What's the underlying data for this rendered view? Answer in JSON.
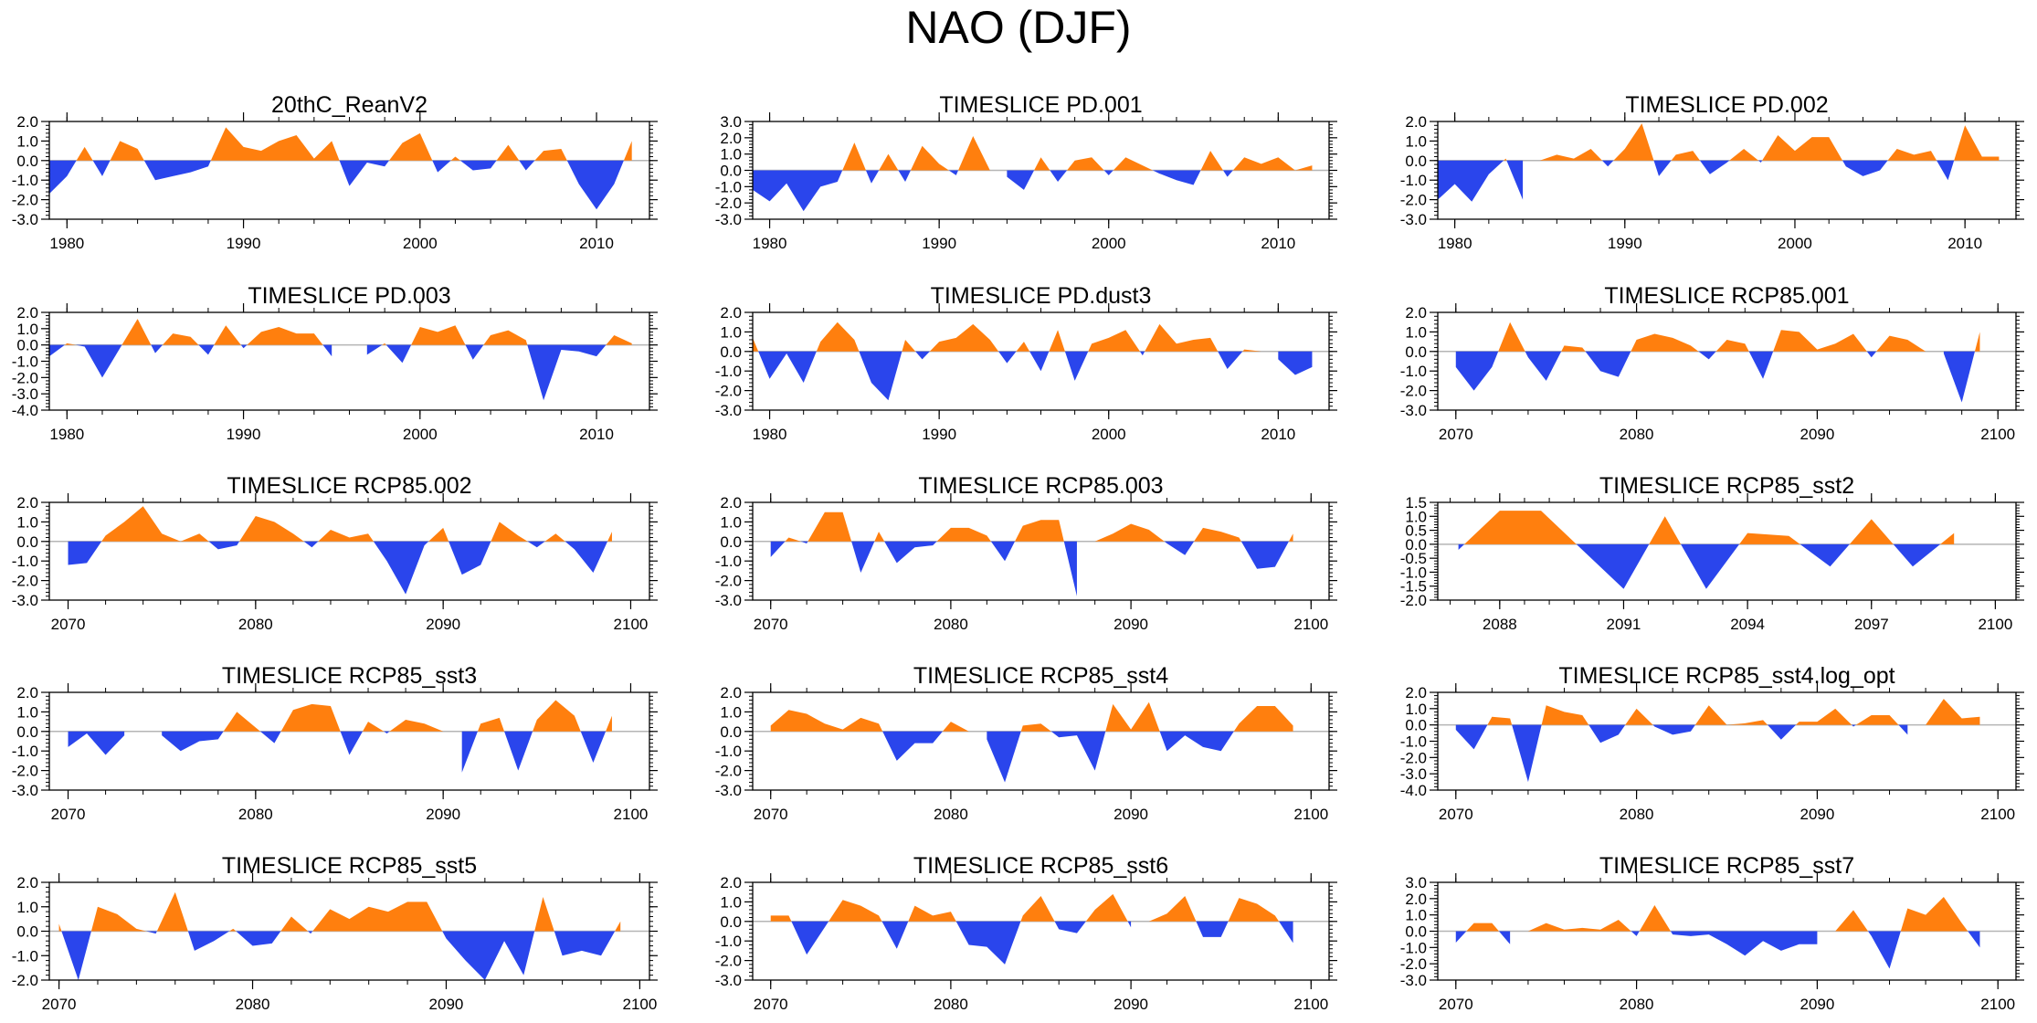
{
  "page": {
    "title": "NAO (DJF)"
  },
  "colors": {
    "positive": "#ff7f0e",
    "negative": "#2a45ec",
    "axis": "#000000",
    "zero_line": "#b5b5b5"
  },
  "chart_data": [
    {
      "type": "area",
      "title": "20thC_ReanV2",
      "xlim": [
        1979,
        2013
      ],
      "ylim": [
        -3,
        2
      ],
      "yticks": [
        -3,
        -2,
        -1,
        0,
        1,
        2
      ],
      "xticks": [
        1980,
        1990,
        2000,
        2010
      ],
      "x": [
        1979,
        1980,
        1981,
        1982,
        1983,
        1984,
        1985,
        1986,
        1987,
        1988,
        1989,
        1990,
        1991,
        1992,
        1993,
        1994,
        1995,
        1996,
        1997,
        1998,
        1999,
        2000,
        2001,
        2002,
        2003,
        2004,
        2005,
        2006,
        2007,
        2008,
        2009,
        2010,
        2011,
        2012
      ],
      "values": [
        -1.7,
        -0.8,
        0.7,
        -0.8,
        1.0,
        0.6,
        -1.0,
        -0.8,
        -0.6,
        -0.3,
        1.7,
        0.7,
        0.5,
        1.0,
        1.3,
        0.1,
        1.0,
        -1.3,
        -0.1,
        -0.3,
        0.9,
        1.4,
        -0.6,
        0.2,
        -0.5,
        -0.4,
        0.8,
        -0.5,
        0.5,
        0.6,
        -1.2,
        -2.5,
        -1.2,
        1.0
      ]
    },
    {
      "type": "area",
      "title": "TIMESLICE PD.001",
      "xlim": [
        1979,
        2013
      ],
      "ylim": [
        -3,
        3
      ],
      "yticks": [
        -3,
        -2,
        -1,
        0,
        1,
        2,
        3
      ],
      "xticks": [
        1980,
        1990,
        2000,
        2010
      ],
      "x": [
        1979,
        1980,
        1981,
        1982,
        1983,
        1984,
        1985,
        1986,
        1987,
        1988,
        1989,
        1990,
        1991,
        1992,
        1993,
        1994,
        1995,
        1996,
        1997,
        1998,
        1999,
        2000,
        2001,
        2002,
        2003,
        2004,
        2005,
        2006,
        2007,
        2008,
        2009,
        2010,
        2011,
        2012
      ],
      "values": [
        -1.2,
        -1.9,
        -0.8,
        -2.5,
        -1.0,
        -0.7,
        1.7,
        -0.8,
        1.0,
        -0.7,
        1.5,
        0.4,
        -0.3,
        2.1,
        0.0,
        -0.4,
        -1.2,
        0.8,
        -0.7,
        0.6,
        0.8,
        -0.3,
        0.8,
        0.3,
        -0.2,
        -0.6,
        -0.9,
        1.2,
        -0.4,
        0.8,
        0.4,
        0.8,
        0.0,
        0.3
      ]
    },
    {
      "type": "area",
      "title": "TIMESLICE PD.002",
      "xlim": [
        1979,
        2013
      ],
      "ylim": [
        -3,
        2
      ],
      "yticks": [
        -3,
        -2,
        -1,
        0,
        1,
        2
      ],
      "xticks": [
        1980,
        1990,
        2000,
        2010
      ],
      "x": [
        1979,
        1980,
        1981,
        1982,
        1983,
        1984,
        1985,
        1986,
        1987,
        1988,
        1989,
        1990,
        1991,
        1992,
        1993,
        1994,
        1995,
        1996,
        1997,
        1998,
        1999,
        2000,
        2001,
        2002,
        2003,
        2004,
        2005,
        2006,
        2007,
        2008,
        2009,
        2010,
        2011,
        2012
      ],
      "values": [
        -2.0,
        -1.2,
        -2.1,
        -0.7,
        0.1,
        -2.0,
        0.0,
        0.3,
        0.1,
        0.6,
        -0.3,
        0.6,
        1.9,
        -0.8,
        0.3,
        0.5,
        -0.7,
        -0.1,
        0.6,
        -0.1,
        1.3,
        0.5,
        1.2,
        1.2,
        -0.3,
        -0.8,
        -0.5,
        0.6,
        0.3,
        0.5,
        -1.0,
        1.8,
        0.2,
        0.2
      ]
    },
    {
      "type": "area",
      "title": "TIMESLICE PD.003",
      "xlim": [
        1979,
        2013
      ],
      "ylim": [
        -4,
        2
      ],
      "yticks": [
        -4,
        -3,
        -2,
        -1,
        0,
        1,
        2
      ],
      "xticks": [
        1980,
        1990,
        2000,
        2010
      ],
      "x": [
        1979,
        1980,
        1981,
        1982,
        1983,
        1984,
        1985,
        1986,
        1987,
        1988,
        1989,
        1990,
        1991,
        1992,
        1993,
        1994,
        1995,
        1996,
        1997,
        1998,
        1999,
        2000,
        2001,
        2002,
        2003,
        2004,
        2005,
        2006,
        2007,
        2008,
        2009,
        2010,
        2011,
        2012
      ],
      "values": [
        -0.7,
        0.1,
        -0.1,
        -2.0,
        -0.2,
        1.6,
        -0.5,
        0.7,
        0.5,
        -0.6,
        1.2,
        -0.2,
        0.8,
        1.1,
        0.7,
        0.7,
        -0.7,
        0.0,
        -0.6,
        0.1,
        -1.1,
        1.1,
        0.8,
        1.2,
        -0.9,
        0.6,
        0.9,
        0.3,
        -3.4,
        -0.3,
        -0.4,
        -0.7,
        0.6,
        0.1
      ]
    },
    {
      "type": "area",
      "title": "TIMESLICE PD.dust3",
      "xlim": [
        1979,
        2013
      ],
      "ylim": [
        -3,
        2
      ],
      "yticks": [
        -3,
        -2,
        -1,
        0,
        1,
        2
      ],
      "xticks": [
        1980,
        1990,
        2000,
        2010
      ],
      "x": [
        1979,
        1980,
        1981,
        1982,
        1983,
        1984,
        1985,
        1986,
        1987,
        1988,
        1989,
        1990,
        1991,
        1992,
        1993,
        1994,
        1995,
        1996,
        1997,
        1998,
        1999,
        2000,
        2001,
        2002,
        2003,
        2004,
        2005,
        2006,
        2007,
        2008,
        2009,
        2010,
        2011,
        2012
      ],
      "values": [
        0.7,
        -1.4,
        -0.1,
        -1.6,
        0.5,
        1.5,
        0.6,
        -1.6,
        -2.5,
        0.6,
        -0.4,
        0.5,
        0.7,
        1.4,
        0.6,
        -0.6,
        0.5,
        -1.0,
        1.1,
        -1.5,
        0.4,
        0.7,
        1.1,
        -0.2,
        1.4,
        0.4,
        0.6,
        0.7,
        -0.9,
        0.1,
        0.0,
        -0.4,
        -1.2,
        -0.8
      ]
    },
    {
      "type": "area",
      "title": "TIMESLICE RCP85.001",
      "xlim": [
        2069,
        2101
      ],
      "ylim": [
        -3,
        2
      ],
      "yticks": [
        -3,
        -2,
        -1,
        0,
        1,
        2
      ],
      "xticks": [
        2070,
        2080,
        2090,
        2100
      ],
      "x": [
        2070,
        2071,
        2072,
        2073,
        2074,
        2075,
        2076,
        2077,
        2078,
        2079,
        2080,
        2081,
        2082,
        2083,
        2084,
        2085,
        2086,
        2087,
        2088,
        2089,
        2090,
        2091,
        2092,
        2093,
        2094,
        2095,
        2096,
        2097,
        2098,
        2099
      ],
      "values": [
        -0.8,
        -2.0,
        -0.8,
        1.5,
        -0.3,
        -1.5,
        0.3,
        0.2,
        -1.0,
        -1.3,
        0.6,
        0.9,
        0.7,
        0.3,
        -0.4,
        0.6,
        0.4,
        -1.4,
        1.1,
        1.0,
        0.1,
        0.4,
        0.9,
        -0.3,
        0.8,
        0.6,
        0.0,
        -0.1,
        -2.6,
        1.0
      ]
    },
    {
      "type": "area",
      "title": "TIMESLICE RCP85.002",
      "xlim": [
        2069,
        2101
      ],
      "ylim": [
        -3,
        2
      ],
      "yticks": [
        -3,
        -2,
        -1,
        0,
        1,
        2
      ],
      "xticks": [
        2070,
        2080,
        2090,
        2100
      ],
      "x": [
        2070,
        2071,
        2072,
        2073,
        2074,
        2075,
        2076,
        2077,
        2078,
        2079,
        2080,
        2081,
        2082,
        2083,
        2084,
        2085,
        2086,
        2087,
        2088,
        2089,
        2090,
        2091,
        2092,
        2093,
        2094,
        2095,
        2096,
        2097,
        2098,
        2099
      ],
      "values": [
        -1.2,
        -1.1,
        0.3,
        1.0,
        1.8,
        0.4,
        0.0,
        0.4,
        -0.4,
        -0.2,
        1.3,
        1.0,
        0.4,
        -0.3,
        0.6,
        0.2,
        0.4,
        -1.0,
        -2.7,
        -0.2,
        0.7,
        -1.7,
        -1.2,
        1.0,
        0.3,
        -0.3,
        0.4,
        -0.4,
        -1.6,
        0.5
      ]
    },
    {
      "type": "area",
      "title": "TIMESLICE RCP85.003",
      "xlim": [
        2069,
        2101
      ],
      "ylim": [
        -3,
        2
      ],
      "yticks": [
        -3,
        -2,
        -1,
        0,
        1,
        2
      ],
      "xticks": [
        2070,
        2080,
        2090,
        2100
      ],
      "x": [
        2070,
        2071,
        2072,
        2073,
        2074,
        2075,
        2076,
        2077,
        2078,
        2079,
        2080,
        2081,
        2082,
        2083,
        2084,
        2085,
        2086,
        2087,
        2088,
        2089,
        2090,
        2091,
        2092,
        2093,
        2094,
        2095,
        2096,
        2097,
        2098,
        2099
      ],
      "values": [
        -0.8,
        0.2,
        -0.1,
        1.5,
        1.5,
        -1.6,
        0.5,
        -1.1,
        -0.3,
        -0.2,
        0.7,
        0.7,
        0.3,
        -1.0,
        0.8,
        1.1,
        1.1,
        -2.8,
        0.0,
        0.4,
        0.9,
        0.6,
        -0.1,
        -0.7,
        0.7,
        0.5,
        0.2,
        -1.4,
        -1.3,
        0.4
      ]
    },
    {
      "type": "area",
      "title": "TIMESLICE RCP85_sst2",
      "xlim": [
        2086.5,
        2100.5
      ],
      "ylim": [
        -2,
        1.5
      ],
      "yticks": [
        -2,
        -1.5,
        -1,
        -0.5,
        0,
        0.5,
        1,
        1.5
      ],
      "xticks": [
        2088,
        2091,
        2094,
        2097,
        2100
      ],
      "x": [
        2087,
        2088,
        2089,
        2090,
        2091,
        2092,
        2093,
        2094,
        2095,
        2096,
        2097,
        2098,
        2099
      ],
      "values": [
        -0.2,
        1.2,
        1.2,
        -0.2,
        -1.6,
        1.0,
        -1.6,
        0.4,
        0.3,
        -0.8,
        0.9,
        -0.8,
        0.4
      ]
    },
    {
      "type": "area",
      "title": "TIMESLICE RCP85_sst3",
      "xlim": [
        2069,
        2101
      ],
      "ylim": [
        -3,
        2
      ],
      "yticks": [
        -3,
        -2,
        -1,
        0,
        1,
        2
      ],
      "xticks": [
        2070,
        2080,
        2090,
        2100
      ],
      "x": [
        2070,
        2071,
        2072,
        2073,
        2074,
        2075,
        2076,
        2077,
        2078,
        2079,
        2080,
        2081,
        2082,
        2083,
        2084,
        2085,
        2086,
        2087,
        2088,
        2089,
        2090,
        2091,
        2092,
        2093,
        2094,
        2095,
        2096,
        2097,
        2098,
        2099
      ],
      "values": [
        -0.8,
        -0.1,
        -1.2,
        -0.2,
        0.0,
        -0.2,
        -1.0,
        -0.5,
        -0.4,
        1.0,
        0.2,
        -0.6,
        1.1,
        1.4,
        1.3,
        -1.2,
        0.5,
        -0.1,
        0.6,
        0.4,
        0.0,
        -2.1,
        0.4,
        0.7,
        -2.0,
        0.6,
        1.6,
        0.8,
        -1.6,
        0.8
      ]
    },
    {
      "type": "area",
      "title": "TIMESLICE RCP85_sst4",
      "xlim": [
        2069,
        2101
      ],
      "ylim": [
        -3,
        2
      ],
      "yticks": [
        -3,
        -2,
        -1,
        0,
        1,
        2
      ],
      "xticks": [
        2070,
        2080,
        2090,
        2100
      ],
      "x": [
        2070,
        2071,
        2072,
        2073,
        2074,
        2075,
        2076,
        2077,
        2078,
        2079,
        2080,
        2081,
        2082,
        2083,
        2084,
        2085,
        2086,
        2087,
        2088,
        2089,
        2090,
        2091,
        2092,
        2093,
        2094,
        2095,
        2096,
        2097,
        2098,
        2099
      ],
      "values": [
        0.3,
        1.1,
        0.9,
        0.4,
        0.1,
        0.7,
        0.4,
        -1.5,
        -0.6,
        -0.6,
        0.5,
        0.0,
        -0.4,
        -2.6,
        0.3,
        0.4,
        -0.3,
        -0.2,
        -2.0,
        1.4,
        0.1,
        1.5,
        -1.0,
        -0.2,
        -0.8,
        -1.0,
        0.4,
        1.3,
        1.3,
        0.3
      ]
    },
    {
      "type": "area",
      "title": "TIMESLICE RCP85_sst4.log_opt",
      "xlim": [
        2069,
        2101
      ],
      "ylim": [
        -4,
        2
      ],
      "yticks": [
        -4,
        -3,
        -2,
        -1,
        0,
        1,
        2
      ],
      "xticks": [
        2070,
        2080,
        2090,
        2100
      ],
      "x": [
        2070,
        2071,
        2072,
        2073,
        2074,
        2075,
        2076,
        2077,
        2078,
        2079,
        2080,
        2081,
        2082,
        2083,
        2084,
        2085,
        2086,
        2087,
        2088,
        2089,
        2090,
        2091,
        2092,
        2093,
        2094,
        2095,
        2096,
        2097,
        2098,
        2099
      ],
      "values": [
        -0.3,
        -1.5,
        0.5,
        0.4,
        -3.5,
        1.2,
        0.8,
        0.6,
        -1.1,
        -0.6,
        1.0,
        -0.1,
        -0.6,
        -0.4,
        1.2,
        0.0,
        0.1,
        0.3,
        -0.9,
        0.2,
        0.2,
        1.0,
        -0.1,
        0.6,
        0.6,
        -0.6,
        0.0,
        1.6,
        0.4,
        0.5
      ]
    },
    {
      "type": "area",
      "title": "TIMESLICE RCP85_sst5",
      "xlim": [
        2069.5,
        2100.5
      ],
      "ylim": [
        -2,
        2
      ],
      "yticks": [
        -2,
        -1,
        0,
        1,
        2
      ],
      "xticks": [
        2070,
        2080,
        2090,
        2100
      ],
      "x": [
        2070,
        2071,
        2072,
        2073,
        2074,
        2075,
        2076,
        2077,
        2078,
        2079,
        2080,
        2081,
        2082,
        2083,
        2084,
        2085,
        2086,
        2087,
        2088,
        2089,
        2090,
        2091,
        2092,
        2093,
        2094,
        2095,
        2096,
        2097,
        2098,
        2099
      ],
      "values": [
        0.3,
        -2.0,
        1.0,
        0.7,
        0.1,
        -0.1,
        1.6,
        -0.8,
        -0.4,
        0.1,
        -0.6,
        -0.5,
        0.6,
        -0.1,
        0.9,
        0.5,
        1.0,
        0.8,
        1.2,
        1.2,
        -0.3,
        -1.2,
        -2.0,
        -0.4,
        -1.8,
        1.4,
        -1.0,
        -0.8,
        -1.0,
        0.4
      ]
    },
    {
      "type": "area",
      "title": "TIMESLICE RCP85_sst6",
      "xlim": [
        2069,
        2101
      ],
      "ylim": [
        -3,
        2
      ],
      "yticks": [
        -3,
        -2,
        -1,
        0,
        1,
        2
      ],
      "xticks": [
        2070,
        2080,
        2090,
        2100
      ],
      "x": [
        2070,
        2071,
        2072,
        2073,
        2074,
        2075,
        2076,
        2077,
        2078,
        2079,
        2080,
        2081,
        2082,
        2083,
        2084,
        2085,
        2086,
        2087,
        2088,
        2089,
        2090,
        2091,
        2092,
        2093,
        2094,
        2095,
        2096,
        2097,
        2098,
        2099
      ],
      "values": [
        0.3,
        0.3,
        -1.7,
        -0.3,
        1.1,
        0.8,
        0.3,
        -1.4,
        0.8,
        0.3,
        0.5,
        -1.2,
        -1.3,
        -2.2,
        0.3,
        1.3,
        -0.4,
        -0.6,
        0.6,
        1.4,
        -0.3,
        0.0,
        0.4,
        1.3,
        -0.8,
        -0.8,
        1.2,
        0.9,
        0.3,
        -1.1
      ]
    },
    {
      "type": "area",
      "title": "TIMESLICE RCP85_sst7",
      "xlim": [
        2069,
        2101
      ],
      "ylim": [
        -3,
        3
      ],
      "yticks": [
        -3,
        -2,
        -1,
        0,
        1,
        2,
        3
      ],
      "xticks": [
        2070,
        2080,
        2090,
        2100
      ],
      "x": [
        2070,
        2071,
        2072,
        2073,
        2074,
        2075,
        2076,
        2077,
        2078,
        2079,
        2080,
        2081,
        2082,
        2083,
        2084,
        2085,
        2086,
        2087,
        2088,
        2089,
        2090,
        2091,
        2092,
        2093,
        2094,
        2095,
        2096,
        2097,
        2098,
        2099
      ],
      "values": [
        -0.7,
        0.5,
        0.5,
        -0.8,
        0.0,
        0.5,
        0.1,
        0.2,
        0.1,
        0.7,
        -0.3,
        1.6,
        -0.2,
        -0.3,
        -0.2,
        -0.8,
        -1.5,
        -0.6,
        -1.2,
        -0.8,
        -0.8,
        0.0,
        1.3,
        -0.3,
        -2.3,
        1.4,
        1.0,
        2.1,
        0.5,
        -1.0
      ]
    }
  ]
}
